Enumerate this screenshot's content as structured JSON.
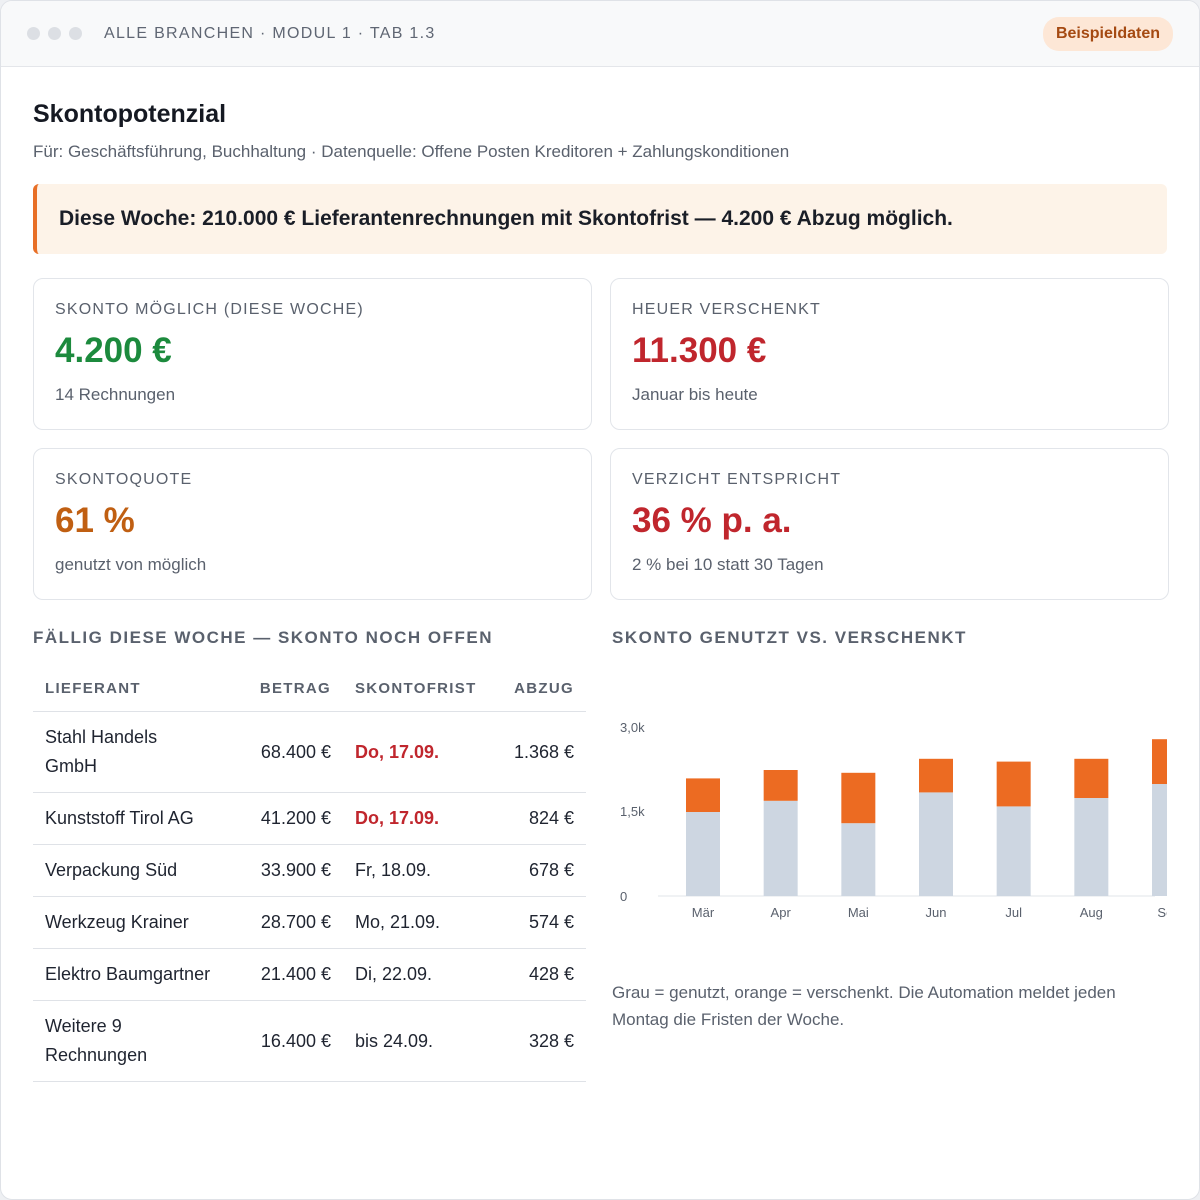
{
  "titlebar": {
    "breadcrumb": "ALLE BRANCHEN · MODUL 1 · TAB 1.3",
    "badge": "Beispieldaten"
  },
  "header": {
    "title": "Skontopotenzial",
    "subtitle": "Für: Geschäftsführung, Buchhaltung · Datenquelle: Offene Posten Kreditoren + Zahlungskonditionen"
  },
  "alert": {
    "text": "Diese Woche: 210.000 € Lieferantenrechnungen mit Skontofrist — 4.200 € Abzug möglich."
  },
  "kpis": [
    {
      "label": "SKONTO MÖGLICH (DIESE WOCHE)",
      "value": "4.200 €",
      "sub": "14 Rechnungen",
      "color": "#1c8a3d"
    },
    {
      "label": "HEUER VERSCHENKT",
      "value": "11.300 €",
      "sub": "Januar bis heute",
      "color": "#c0262d"
    },
    {
      "label": "SKONTOQUOTE",
      "value": "61 %",
      "sub": "genutzt von möglich",
      "color": "#c05f12"
    },
    {
      "label": "VERZICHT ENTSPRICHT",
      "value": "36 % p. a.",
      "sub": "2 % bei 10 statt 30 Tagen",
      "color": "#c0262d"
    }
  ],
  "table": {
    "title": "FÄLLIG DIESE WOCHE — SKONTO NOCH OFFEN",
    "headers": {
      "supplier": "LIEFERANT",
      "amount": "BETRAG",
      "deadline": "SKONTOFRIST",
      "discount": "ABZUG"
    },
    "rows": [
      {
        "supplier": "Stahl Handels GmbH",
        "amount": "68.400 €",
        "deadline": "Do, 17.09.",
        "discount": "1.368 €",
        "urgent": true
      },
      {
        "supplier": "Kunststoff Tirol AG",
        "amount": "41.200 €",
        "deadline": "Do, 17.09.",
        "discount": "824 €",
        "urgent": true
      },
      {
        "supplier": "Verpackung Süd",
        "amount": "33.900 €",
        "deadline": "Fr, 18.09.",
        "discount": "678 €",
        "urgent": false
      },
      {
        "supplier": "Werkzeug Krainer",
        "amount": "28.700 €",
        "deadline": "Mo, 21.09.",
        "discount": "574 €",
        "urgent": false
      },
      {
        "supplier": "Elektro Baumgartner",
        "amount": "21.400 €",
        "deadline": "Di, 22.09.",
        "discount": "428 €",
        "urgent": false
      },
      {
        "supplier": "Weitere 9 Rechnungen",
        "amount": "16.400 €",
        "deadline": "bis 24.09.",
        "discount": "328 €",
        "urgent": false
      }
    ]
  },
  "chart": {
    "title": "SKONTO GENUTZT VS. VERSCHENKT",
    "note": "Grau = genutzt, orange = verschenkt. Die Automation meldet jeden Montag die Fristen der Woche."
  },
  "chart_data": {
    "type": "bar",
    "stacked": true,
    "categories": [
      "Mär",
      "Apr",
      "Mai",
      "Jun",
      "Jul",
      "Aug",
      "Sep"
    ],
    "series": [
      {
        "values": [
          1500,
          1700,
          1300,
          1850,
          1600,
          1750,
          2000
        ],
        "color": "#cdd6e1"
      },
      {
        "values": [
          600,
          550,
          900,
          600,
          800,
          700,
          800
        ],
        "color": "#ec6b22"
      }
    ],
    "ylim": [
      0,
      3000
    ],
    "yticks": [
      0,
      1500,
      3000
    ],
    "ytick_labels": [
      "0",
      "1,5k",
      "3,0k"
    ],
    "grid": false,
    "legend": "none"
  }
}
